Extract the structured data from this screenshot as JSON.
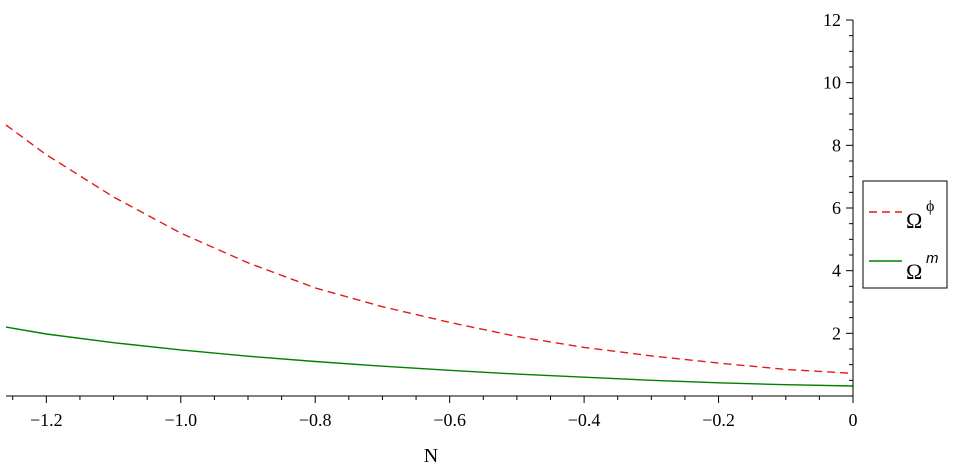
{
  "chart_data": {
    "type": "line",
    "xlabel": "N",
    "ylabel": "",
    "xlim": [
      -1.26,
      0
    ],
    "ylim": [
      0,
      12
    ],
    "x_ticks": [
      {
        "value": -1.2,
        "label": "−1.2"
      },
      {
        "value": -1.0,
        "label": "−1.0"
      },
      {
        "value": -0.8,
        "label": "−0.8"
      },
      {
        "value": -0.6,
        "label": "−0.6"
      },
      {
        "value": -0.4,
        "label": "−0.4"
      },
      {
        "value": -0.2,
        "label": "−0.2"
      },
      {
        "value": 0,
        "label": "0"
      }
    ],
    "y_ticks": [
      {
        "value": 2,
        "label": "2"
      },
      {
        "value": 4,
        "label": "4"
      },
      {
        "value": 6,
        "label": "6"
      },
      {
        "value": 8,
        "label": "8"
      },
      {
        "value": 10,
        "label": "10"
      },
      {
        "value": 12,
        "label": "12"
      }
    ],
    "grid": false,
    "legend_position": "right",
    "series": [
      {
        "name": "Ω",
        "superscript": "ϕ",
        "color": "#e31a1c",
        "dash": "dashed",
        "x": [
          -1.26,
          -1.2,
          -1.1,
          -1.0,
          -0.9,
          -0.8,
          -0.7,
          -0.6,
          -0.5,
          -0.4,
          -0.3,
          -0.2,
          -0.1,
          0
        ],
        "y": [
          8.65,
          7.7,
          6.35,
          5.2,
          4.25,
          3.45,
          2.85,
          2.35,
          1.9,
          1.55,
          1.28,
          1.05,
          0.85,
          0.72
        ]
      },
      {
        "name": "Ω",
        "superscript": "m",
        "color": "#008000",
        "dash": "solid",
        "x": [
          -1.26,
          -1.2,
          -1.1,
          -1.0,
          -0.9,
          -0.8,
          -0.7,
          -0.6,
          -0.5,
          -0.4,
          -0.3,
          -0.2,
          -0.1,
          0
        ],
        "y": [
          2.2,
          1.98,
          1.7,
          1.47,
          1.27,
          1.1,
          0.95,
          0.82,
          0.7,
          0.6,
          0.5,
          0.42,
          0.36,
          0.32
        ]
      }
    ]
  }
}
